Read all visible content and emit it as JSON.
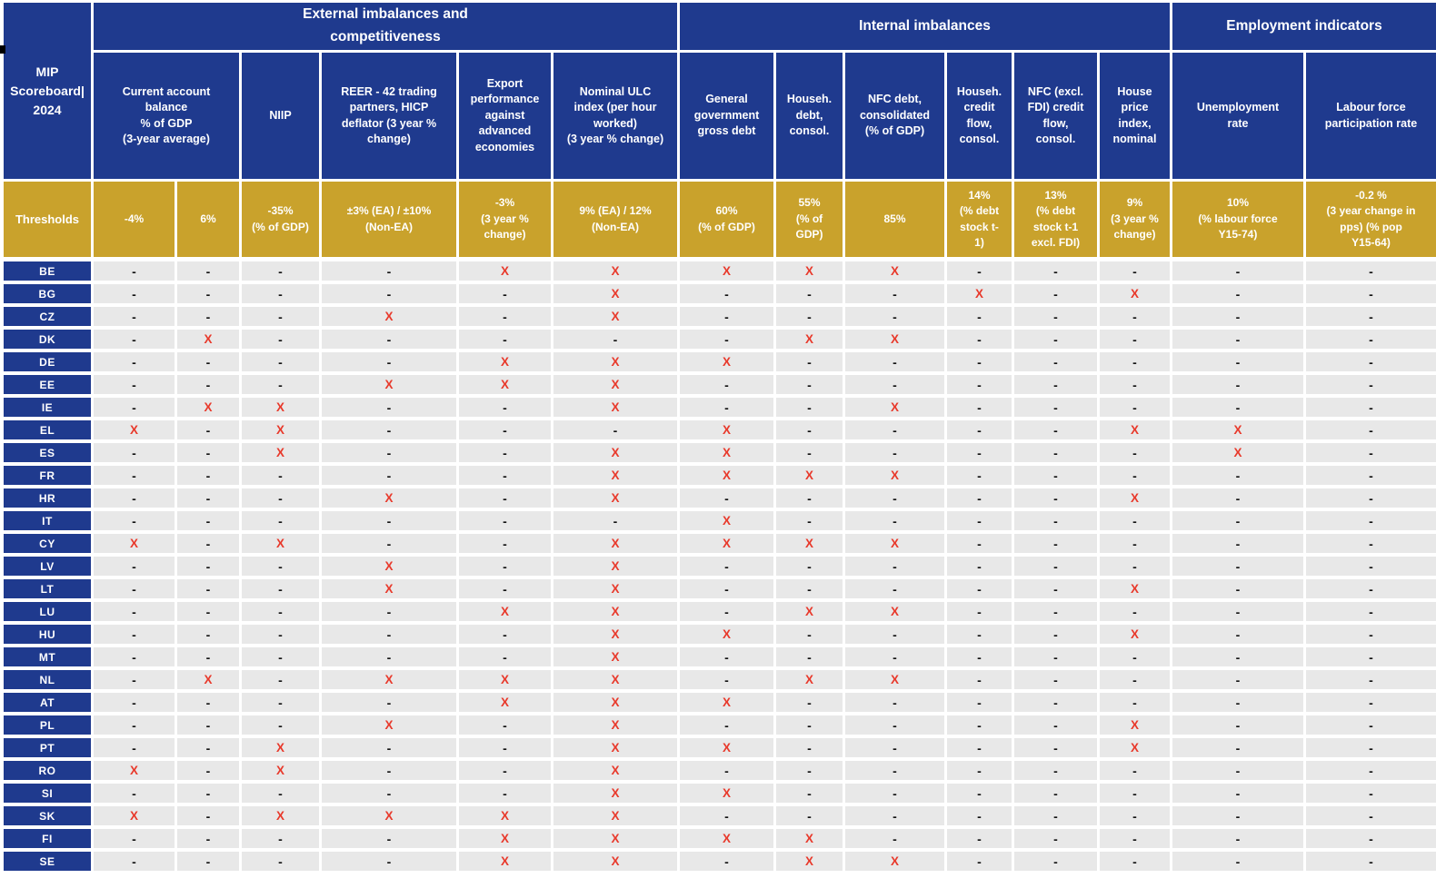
{
  "colors": {
    "header_blue": "#1F3A8E",
    "threshold_gold": "#C9A22C",
    "flag_red": "#E8392B",
    "row_gray": "#E8E8E8"
  },
  "title": "MIP\nScoreboard|\n2024",
  "thresholds_label": "Thresholds",
  "groups": [
    "External imbalances and\ncompetitiveness",
    "Internal imbalances",
    "Employment indicators"
  ],
  "columns": [
    "Current account\nbalance\n% of GDP\n(3-year average)",
    "NIIP",
    "REER - 42 trading\npartners, HICP\ndeflator (3 year %\nchange)",
    "Export\nperformance\nagainst\nadvanced\neconomies",
    "Nominal ULC\nindex (per hour\nworked)\n(3 year % change)",
    "General\ngovernment\ngross debt",
    "Househ.\ndebt,\nconsol.",
    "NFC debt,\nconsolidated\n(% of GDP)",
    "Househ.\ncredit\nflow,\nconsol.",
    "NFC (excl.\nFDI) credit\nflow,\nconsol.",
    "House\nprice\nindex,\nnominal",
    "Unemployment\nrate",
    "Labour force\nparticipation rate"
  ],
  "thresholds": [
    "-4%",
    "6%",
    "-35%\n(% of GDP)",
    "±3% (EA) / ±10%\n(Non-EA)",
    "-3%\n(3 year %\nchange)",
    "9% (EA) / 12%\n(Non-EA)",
    "60%\n(% of GDP)",
    "55%\n(% of\nGDP)",
    "85%",
    "14%\n(% debt\nstock t-\n1)",
    "13%\n(% debt\nstock t-1\nexcl. FDI)",
    "9%\n(3 year %\nchange)",
    "10%\n(% labour force\nY15-74)",
    "-0.2 %\n(3 year change in\npps)      (% pop\nY15-64)"
  ],
  "legend": {
    "flag": "X",
    "no_flag": "-"
  },
  "rows": [
    {
      "country": "BE",
      "marks": [
        "-",
        "-",
        "-",
        "-",
        "X",
        "X",
        "X",
        "X",
        "X",
        "-",
        "-",
        "-",
        "-",
        "-"
      ]
    },
    {
      "country": "BG",
      "marks": [
        "-",
        "-",
        "-",
        "-",
        "-",
        "X",
        "-",
        "-",
        "-",
        "X",
        "-",
        "X",
        "-",
        "-"
      ]
    },
    {
      "country": "CZ",
      "marks": [
        "-",
        "-",
        "-",
        "X",
        "-",
        "X",
        "-",
        "-",
        "-",
        "-",
        "-",
        "-",
        "-",
        "-"
      ]
    },
    {
      "country": "DK",
      "marks": [
        "-",
        "X",
        "-",
        "-",
        "-",
        "-",
        "-",
        "X",
        "X",
        "-",
        "-",
        "-",
        "-",
        "-"
      ]
    },
    {
      "country": "DE",
      "marks": [
        "-",
        "-",
        "-",
        "-",
        "X",
        "X",
        "X",
        "-",
        "-",
        "-",
        "-",
        "-",
        "-",
        "-"
      ]
    },
    {
      "country": "EE",
      "marks": [
        "-",
        "-",
        "-",
        "X",
        "X",
        "X",
        "-",
        "-",
        "-",
        "-",
        "-",
        "-",
        "-",
        "-"
      ]
    },
    {
      "country": "IE",
      "marks": [
        "-",
        "X",
        "X",
        "-",
        "-",
        "X",
        "-",
        "-",
        "X",
        "-",
        "-",
        "-",
        "-",
        "-"
      ]
    },
    {
      "country": "EL",
      "marks": [
        "X",
        "-",
        "X",
        "-",
        "-",
        "-",
        "X",
        "-",
        "-",
        "-",
        "-",
        "X",
        "X",
        "-"
      ]
    },
    {
      "country": "ES",
      "marks": [
        "-",
        "-",
        "X",
        "-",
        "-",
        "X",
        "X",
        "-",
        "-",
        "-",
        "-",
        "-",
        "X",
        "-"
      ]
    },
    {
      "country": "FR",
      "marks": [
        "-",
        "-",
        "-",
        "-",
        "-",
        "X",
        "X",
        "X",
        "X",
        "-",
        "-",
        "-",
        "-",
        "-"
      ]
    },
    {
      "country": "HR",
      "marks": [
        "-",
        "-",
        "-",
        "X",
        "-",
        "X",
        "-",
        "-",
        "-",
        "-",
        "-",
        "X",
        "-",
        "-"
      ]
    },
    {
      "country": "IT",
      "marks": [
        "-",
        "-",
        "-",
        "-",
        "-",
        "-",
        "X",
        "-",
        "-",
        "-",
        "-",
        "-",
        "-",
        "-"
      ]
    },
    {
      "country": "CY",
      "marks": [
        "X",
        "-",
        "X",
        "-",
        "-",
        "X",
        "X",
        "X",
        "X",
        "-",
        "-",
        "-",
        "-",
        "-"
      ]
    },
    {
      "country": "LV",
      "marks": [
        "-",
        "-",
        "-",
        "X",
        "-",
        "X",
        "-",
        "-",
        "-",
        "-",
        "-",
        "-",
        "-",
        "-"
      ]
    },
    {
      "country": "LT",
      "marks": [
        "-",
        "-",
        "-",
        "X",
        "-",
        "X",
        "-",
        "-",
        "-",
        "-",
        "-",
        "X",
        "-",
        "-"
      ]
    },
    {
      "country": "LU",
      "marks": [
        "-",
        "-",
        "-",
        "-",
        "X",
        "X",
        "-",
        "X",
        "X",
        "-",
        "-",
        "-",
        "-",
        "-"
      ]
    },
    {
      "country": "HU",
      "marks": [
        "-",
        "-",
        "-",
        "-",
        "-",
        "X",
        "X",
        "-",
        "-",
        "-",
        "-",
        "X",
        "-",
        "-"
      ]
    },
    {
      "country": "MT",
      "marks": [
        "-",
        "-",
        "-",
        "-",
        "-",
        "X",
        "-",
        "-",
        "-",
        "-",
        "-",
        "-",
        "-",
        "-"
      ]
    },
    {
      "country": "NL",
      "marks": [
        "-",
        "X",
        "-",
        "X",
        "X",
        "X",
        "-",
        "X",
        "X",
        "-",
        "-",
        "-",
        "-",
        "-"
      ]
    },
    {
      "country": "AT",
      "marks": [
        "-",
        "-",
        "-",
        "-",
        "X",
        "X",
        "X",
        "-",
        "-",
        "-",
        "-",
        "-",
        "-",
        "-"
      ]
    },
    {
      "country": "PL",
      "marks": [
        "-",
        "-",
        "-",
        "X",
        "-",
        "X",
        "-",
        "-",
        "-",
        "-",
        "-",
        "X",
        "-",
        "-"
      ]
    },
    {
      "country": "PT",
      "marks": [
        "-",
        "-",
        "X",
        "-",
        "-",
        "X",
        "X",
        "-",
        "-",
        "-",
        "-",
        "X",
        "-",
        "-"
      ]
    },
    {
      "country": "RO",
      "marks": [
        "X",
        "-",
        "X",
        "-",
        "-",
        "X",
        "-",
        "-",
        "-",
        "-",
        "-",
        "-",
        "-",
        "-"
      ]
    },
    {
      "country": "SI",
      "marks": [
        "-",
        "-",
        "-",
        "-",
        "-",
        "X",
        "X",
        "-",
        "-",
        "-",
        "-",
        "-",
        "-",
        "-"
      ]
    },
    {
      "country": "SK",
      "marks": [
        "X",
        "-",
        "X",
        "X",
        "X",
        "X",
        "-",
        "-",
        "-",
        "-",
        "-",
        "-",
        "-",
        "-"
      ]
    },
    {
      "country": "FI",
      "marks": [
        "-",
        "-",
        "-",
        "-",
        "X",
        "X",
        "X",
        "X",
        "-",
        "-",
        "-",
        "-",
        "-",
        "-"
      ]
    },
    {
      "country": "SE",
      "marks": [
        "-",
        "-",
        "-",
        "-",
        "X",
        "X",
        "-",
        "X",
        "X",
        "-",
        "-",
        "-",
        "-",
        "-"
      ]
    }
  ]
}
